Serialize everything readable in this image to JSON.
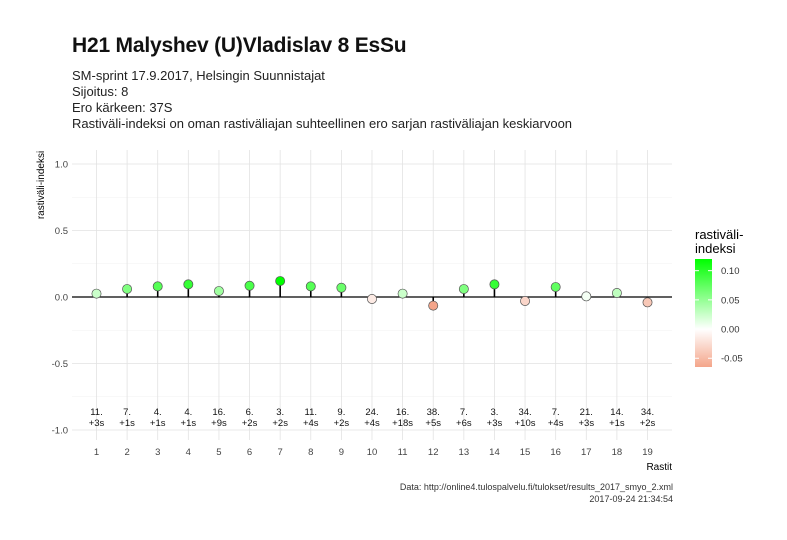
{
  "chart_data": {
    "type": "scatter",
    "title": "H21 Malyshev (U)Vladislav 8 EsSu",
    "subtitle_lines": [
      "SM-sprint 17.9.2017, Helsingin Suunnistajat",
      "Sijoitus: 8",
      "Ero kärkeen: 37S",
      "Rastiväli-indeksi on oman rastiväliajan suhteellinen ero sarjan rastiväliajan keskiarvoon"
    ],
    "xlabel": "Rastit",
    "ylabel": "rastiväli-indeksi",
    "ylim": [
      -1.0,
      1.0
    ],
    "yticks": [
      "1.0",
      "0.5",
      "0.0",
      "-0.5",
      "-1.0"
    ],
    "ytick_values": [
      1.0,
      0.5,
      0.0,
      -0.5,
      -1.0
    ],
    "x": [
      1,
      2,
      3,
      4,
      5,
      6,
      7,
      8,
      9,
      10,
      11,
      12,
      13,
      14,
      15,
      16,
      17,
      18,
      19
    ],
    "xticks": [
      "1",
      "2",
      "3",
      "4",
      "5",
      "6",
      "7",
      "8",
      "9",
      "10",
      "11",
      "12",
      "13",
      "14",
      "15",
      "16",
      "17",
      "18",
      "19"
    ],
    "values": [
      0.025,
      0.06,
      0.08,
      0.095,
      0.045,
      0.085,
      0.12,
      0.08,
      0.07,
      -0.015,
      0.025,
      -0.065,
      0.06,
      0.095,
      -0.03,
      0.075,
      0.005,
      0.03,
      -0.04
    ],
    "rank_labels": [
      "11.",
      "7.",
      "4.",
      "4.",
      "16.",
      "6.",
      "3.",
      "11.",
      "9.",
      "24.",
      "16.",
      "38.",
      "7.",
      "3.",
      "34.",
      "7.",
      "21.",
      "14.",
      "34."
    ],
    "diff_labels": [
      "+3s",
      "+1s",
      "+1s",
      "+1s",
      "+9s",
      "+2s",
      "+2s",
      "+4s",
      "+2s",
      "+4s",
      "+18s",
      "+5s",
      "+6s",
      "+3s",
      "+10s",
      "+4s",
      "+3s",
      "+1s",
      "+2s"
    ],
    "legend": {
      "title_lines": [
        "rastiväli-",
        "indeksi"
      ],
      "ticks": [
        "0.10",
        "0.05",
        "0.00",
        "-0.05"
      ],
      "tick_values": [
        0.1,
        0.05,
        0.0,
        -0.05
      ],
      "range": [
        -0.065,
        0.12
      ],
      "color_high": "#00ff00",
      "color_mid": "#ffffff",
      "color_low": "#f4a58a",
      "position": "right"
    },
    "grid": true
  },
  "caption_lines": [
    "Data: http://online4.tulospalvelu.fi/tulokset/results_2017_smyo_2.xml",
    "2017-09-24 21:34:54"
  ]
}
